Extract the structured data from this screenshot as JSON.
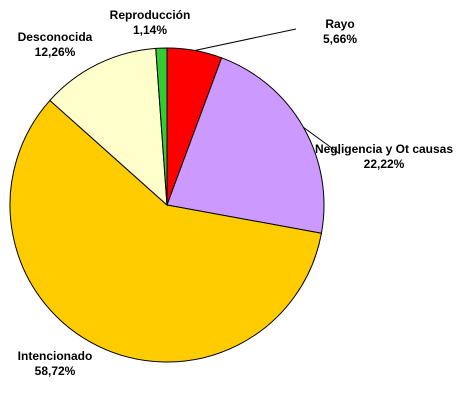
{
  "chart_data": {
    "type": "pie",
    "categories": [
      "Rayo",
      "Negligencia y Ot causas",
      "Intencionado",
      "Desconocida",
      "Reproducción"
    ],
    "values": [
      5.66,
      22.22,
      58.72,
      12.26,
      1.14
    ],
    "value_labels": [
      "5,66%",
      "22,22%",
      "58,72%",
      "12,26%",
      "1,14%"
    ],
    "colors": [
      "#ff0000",
      "#cc99ff",
      "#ffcc00",
      "#ffffcc",
      "#33cc33"
    ]
  }
}
